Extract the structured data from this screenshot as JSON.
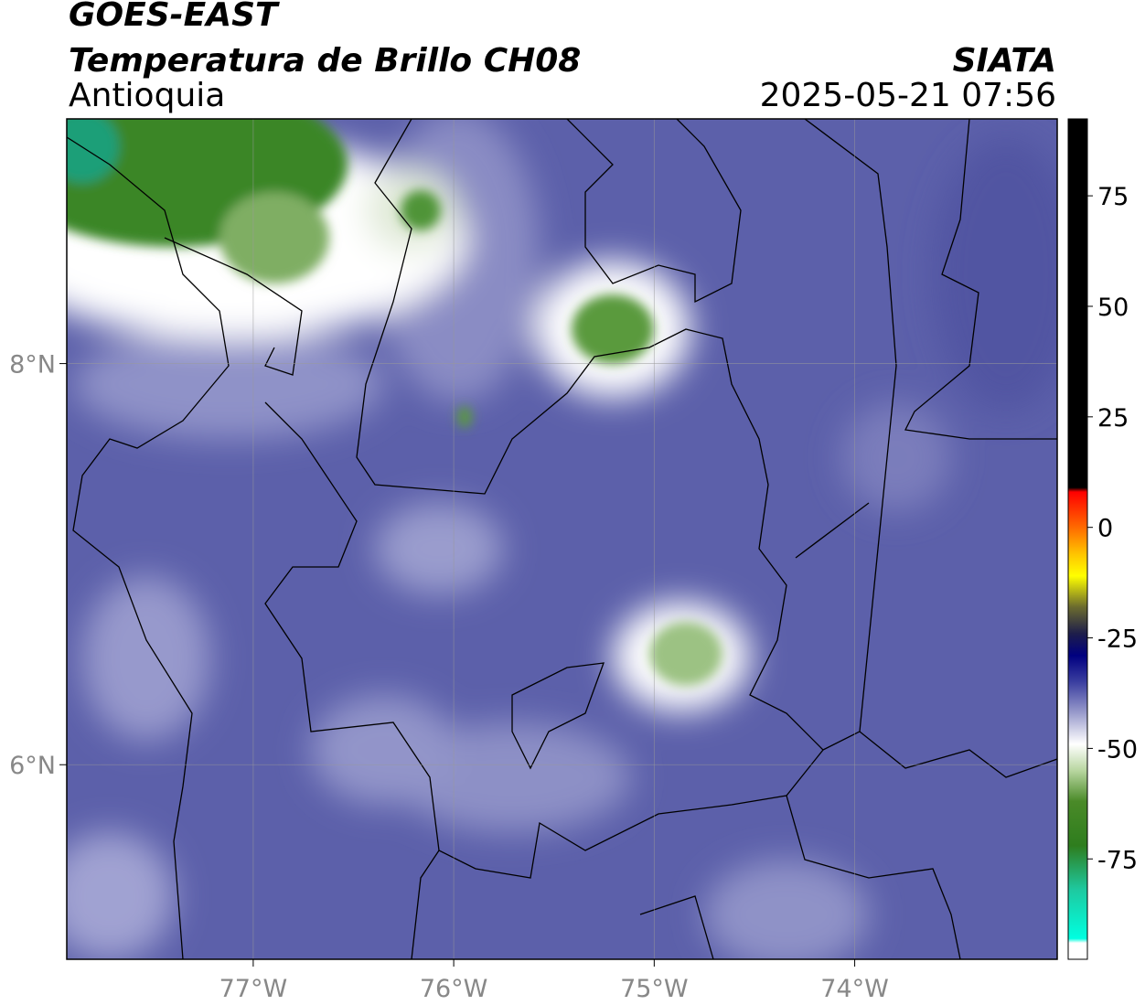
{
  "header": {
    "title": "GOES-EAST",
    "subtitle": "Temperatura de Brillo CH08",
    "region": "Antioquia",
    "source": "SIATA",
    "datetime": "2025-05-21 07:56"
  },
  "map": {
    "xlim": [
      -77.93,
      -72.99
    ],
    "ylim": [
      5.03,
      9.22
    ],
    "lon_ticks": [
      {
        "value": -77,
        "label": "77°W"
      },
      {
        "value": -76,
        "label": "76°W"
      },
      {
        "value": -75,
        "label": "75°W"
      },
      {
        "value": -74,
        "label": "74°W"
      }
    ],
    "lat_ticks": [
      {
        "value": 8,
        "label": "8°N"
      },
      {
        "value": 6,
        "label": "6°N"
      }
    ],
    "grid": true
  },
  "colorbar": {
    "range": [
      -97.7,
      92.4
    ],
    "ticks": [
      75,
      50,
      25,
      0,
      -25,
      -50,
      -75
    ],
    "stops": [
      [
        92.4,
        "#000000"
      ],
      [
        9,
        "#000000"
      ],
      [
        8,
        "#ff0000"
      ],
      [
        0,
        "#ff6a00"
      ],
      [
        -6,
        "#ffc400"
      ],
      [
        -11,
        "#ffff00"
      ],
      [
        -18,
        "#6b6b2e"
      ],
      [
        -24,
        "#1e1e4a"
      ],
      [
        -29,
        "#000080"
      ],
      [
        -35,
        "#3b3fa0"
      ],
      [
        -42,
        "#9a9ccc"
      ],
      [
        -49,
        "#ffffff"
      ],
      [
        -55,
        "#b8d6a0"
      ],
      [
        -62,
        "#4a8a28"
      ],
      [
        -72,
        "#2e7d1e"
      ],
      [
        -82,
        "#1ec9a0"
      ],
      [
        -93,
        "#00ffe0"
      ],
      [
        -94,
        "#ffffff"
      ],
      [
        -97.7,
        "#ffffff"
      ]
    ]
  }
}
